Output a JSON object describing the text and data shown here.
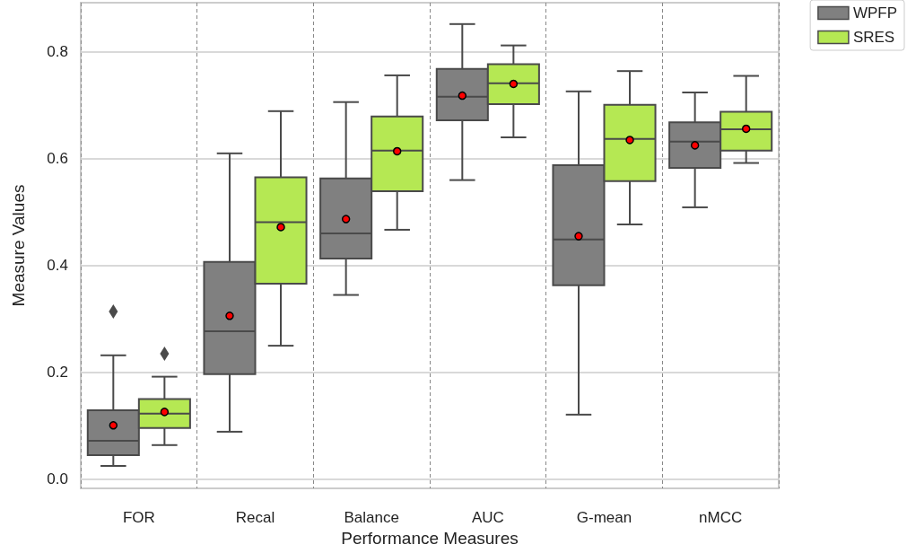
{
  "chart_data": {
    "type": "box",
    "xlabel": "Performance Measures",
    "ylabel": "Measure Values",
    "categories": [
      "FOR",
      "Recal",
      "Balance",
      "AUC",
      "G-mean",
      "nMCC"
    ],
    "ylim": [
      -0.017,
      0.892
    ],
    "yticks": [
      {
        "value": 0,
        "label": "0.0"
      },
      {
        "value": 0.2,
        "label": "0.2"
      },
      {
        "value": 0.4,
        "label": "0.4"
      },
      {
        "value": 0.6,
        "label": "0.6"
      },
      {
        "value": 0.8,
        "label": "0.8"
      }
    ],
    "grid": true,
    "legend": "top right",
    "series": [
      {
        "name": "WPFP",
        "color": "#808080",
        "boxes": [
          {
            "low": 0.025,
            "q1": 0.045,
            "median": 0.072,
            "q3": 0.129,
            "high": 0.232,
            "mean": 0.101,
            "outliers": [
              0.314
            ]
          },
          {
            "low": 0.089,
            "q1": 0.197,
            "median": 0.277,
            "q3": 0.407,
            "high": 0.61,
            "mean": 0.306
          },
          {
            "low": 0.345,
            "q1": 0.413,
            "median": 0.46,
            "q3": 0.563,
            "high": 0.706,
            "mean": 0.487
          },
          {
            "low": 0.56,
            "q1": 0.672,
            "median": 0.716,
            "q3": 0.768,
            "high": 0.852,
            "mean": 0.718
          },
          {
            "low": 0.121,
            "q1": 0.363,
            "median": 0.449,
            "q3": 0.588,
            "high": 0.726,
            "mean": 0.455
          },
          {
            "low": 0.509,
            "q1": 0.583,
            "median": 0.632,
            "q3": 0.668,
            "high": 0.724,
            "mean": 0.625
          }
        ]
      },
      {
        "name": "SRES",
        "color": "#b5e853",
        "boxes": [
          {
            "low": 0.064,
            "q1": 0.096,
            "median": 0.123,
            "q3": 0.15,
            "high": 0.192,
            "mean": 0.126,
            "outliers": [
              0.235
            ]
          },
          {
            "low": 0.25,
            "q1": 0.366,
            "median": 0.481,
            "q3": 0.565,
            "high": 0.689,
            "mean": 0.472
          },
          {
            "low": 0.467,
            "q1": 0.539,
            "median": 0.615,
            "q3": 0.679,
            "high": 0.756,
            "mean": 0.614
          },
          {
            "low": 0.64,
            "q1": 0.702,
            "median": 0.741,
            "q3": 0.777,
            "high": 0.812,
            "mean": 0.74
          },
          {
            "low": 0.477,
            "q1": 0.558,
            "median": 0.637,
            "q3": 0.701,
            "high": 0.764,
            "mean": 0.635
          },
          {
            "low": 0.592,
            "q1": 0.615,
            "median": 0.655,
            "q3": 0.688,
            "high": 0.755,
            "mean": 0.656
          }
        ]
      }
    ]
  }
}
